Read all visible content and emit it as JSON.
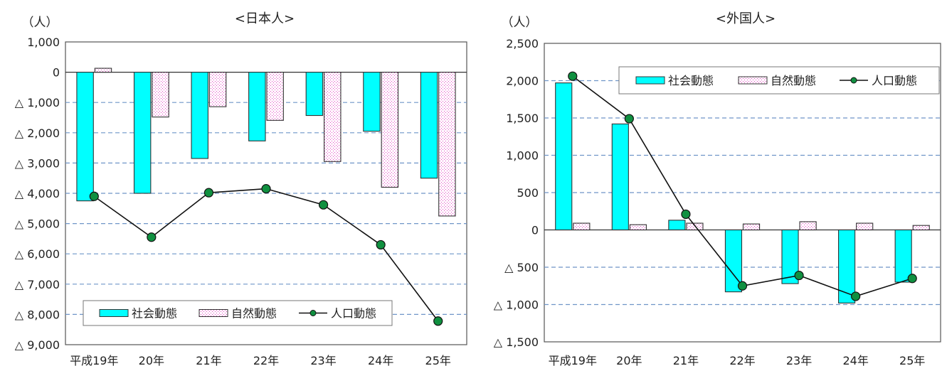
{
  "chart_data": [
    {
      "type": "bar",
      "title": "<日本人>",
      "ylabel": "（人）",
      "categories": [
        "平成19年",
        "20年",
        "21年",
        "22年",
        "23年",
        "24年",
        "25年"
      ],
      "ylim": [
        -9000,
        1000
      ],
      "yticks": [
        1000,
        0,
        -1000,
        -2000,
        -3000,
        -4000,
        -5000,
        -6000,
        -7000,
        -8000,
        -9000
      ],
      "ytick_labels": [
        "1,000",
        "0",
        "△ 1,000",
        "△ 2,000",
        "△ 3,000",
        "△ 4,000",
        "△ 5,000",
        "△ 6,000",
        "△ 7,000",
        "△ 8,000",
        "△ 9,000"
      ],
      "grid": "dashed horizontal",
      "legend_position": "bottom",
      "series": [
        {
          "name": "社会動態",
          "kind": "bar",
          "color": "#00ffff",
          "values": [
            -4250,
            -4000,
            -2850,
            -2270,
            -1430,
            -1950,
            -3500
          ]
        },
        {
          "name": "自然動態",
          "kind": "bar",
          "pattern": "dotted-pink",
          "values": [
            130,
            -1480,
            -1140,
            -1590,
            -2950,
            -3800,
            -4750
          ]
        },
        {
          "name": "人口動態",
          "kind": "line",
          "color": "#109040",
          "values": [
            -4100,
            -5450,
            -3980,
            -3850,
            -4380,
            -5700,
            -8220
          ]
        }
      ]
    },
    {
      "type": "bar",
      "title": "<外国人>",
      "ylabel": "（人）",
      "categories": [
        "平成19年",
        "20年",
        "21年",
        "22年",
        "23年",
        "24年",
        "25年"
      ],
      "ylim": [
        -1500,
        2500
      ],
      "yticks": [
        2500,
        2000,
        1500,
        1000,
        500,
        0,
        -500,
        -1000,
        -1500
      ],
      "ytick_labels": [
        "2,500",
        "2,000",
        "1,500",
        "1,000",
        "500",
        "0",
        "△ 500",
        "△ 1,000",
        "△ 1,500"
      ],
      "grid": "dashed horizontal",
      "legend_position": "top-right",
      "series": [
        {
          "name": "社会動態",
          "kind": "bar",
          "color": "#00ffff",
          "values": [
            1970,
            1420,
            130,
            -830,
            -720,
            -980,
            -700
          ]
        },
        {
          "name": "自然動態",
          "kind": "bar",
          "pattern": "dotted-pink",
          "values": [
            90,
            70,
            90,
            80,
            110,
            90,
            60
          ]
        },
        {
          "name": "人口動態",
          "kind": "line",
          "color": "#109040",
          "values": [
            2060,
            1490,
            210,
            -750,
            -610,
            -890,
            -650
          ]
        }
      ]
    }
  ]
}
